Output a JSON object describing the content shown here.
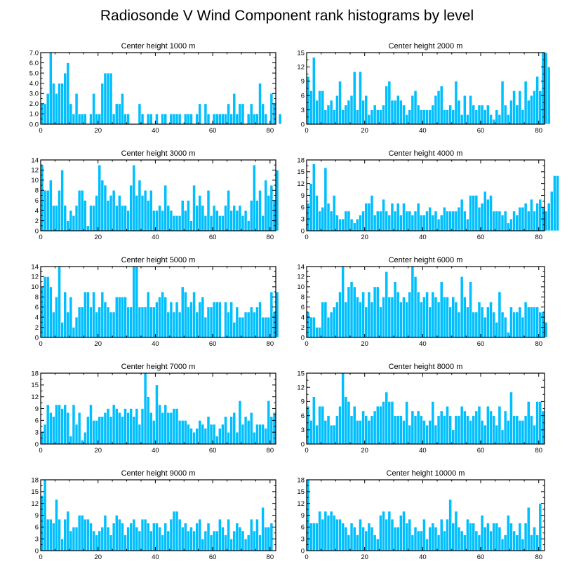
{
  "figure": {
    "title": "Radiosonde V Wind Component rank histograms by level"
  },
  "chart_data": [
    {
      "type": "bar",
      "title": "Center height 1000 m",
      "x_ticks": [
        0,
        20,
        40,
        60,
        80
      ],
      "xlim": [
        0,
        82
      ],
      "ylim": [
        0,
        7
      ],
      "y_ticks": [
        "0.0",
        "1.0",
        "2.0",
        "3.0",
        "4.0",
        "5.0",
        "6.0",
        "7.0"
      ],
      "values": [
        2,
        2,
        3,
        7,
        4,
        3,
        4,
        4,
        5,
        6,
        2,
        1,
        3,
        1,
        1,
        1,
        0,
        1,
        3,
        1,
        1,
        4,
        5,
        5,
        5,
        1,
        2,
        2,
        3,
        1,
        1,
        0,
        0,
        0,
        2,
        1,
        0,
        1,
        1,
        0,
        1,
        0,
        1,
        1,
        0,
        1,
        1,
        1,
        1,
        0,
        1,
        1,
        1,
        0,
        1,
        2,
        0,
        2,
        1,
        0,
        1,
        1,
        1,
        1,
        1,
        2,
        1,
        3,
        1,
        2,
        2,
        0,
        1,
        2,
        1,
        1,
        4,
        2,
        1,
        0,
        3,
        2,
        0,
        1,
        0
      ]
    },
    {
      "type": "bar",
      "title": "Center height 2000 m",
      "x_ticks": [
        0,
        20,
        40,
        60,
        80
      ],
      "xlim": [
        0,
        82
      ],
      "ylim": [
        0,
        15
      ],
      "y_ticks": [
        "0",
        "3",
        "6",
        "9",
        "12",
        "15"
      ],
      "values": [
        10,
        7,
        14,
        5,
        7,
        7,
        3,
        4,
        5,
        3,
        6,
        9,
        3,
        4,
        5,
        6,
        11,
        3,
        11,
        5,
        6,
        2,
        3,
        4,
        3,
        3,
        4,
        8,
        9,
        5,
        5,
        6,
        5,
        4,
        2,
        3,
        6,
        7,
        4,
        3,
        3,
        3,
        3,
        4,
        6,
        7,
        8,
        3,
        3,
        4,
        3,
        9,
        5,
        2,
        6,
        2,
        6,
        4,
        3,
        4,
        4,
        3,
        4,
        2,
        1,
        3,
        2,
        9,
        4,
        2,
        5,
        7,
        4,
        7,
        3,
        9,
        5,
        6,
        7,
        10,
        7,
        15,
        15,
        12
      ]
    },
    {
      "type": "bar",
      "title": "Center height 3000 m",
      "x_ticks": [
        0,
        20,
        40,
        60,
        80
      ],
      "xlim": [
        0,
        82
      ],
      "ylim": [
        0,
        14
      ],
      "y_ticks": [
        "0",
        "2",
        "4",
        "6",
        "8",
        "10",
        "12",
        "14"
      ],
      "values": [
        13,
        8,
        8,
        10,
        5,
        5,
        8,
        12,
        5,
        2,
        4,
        3,
        5,
        8,
        8,
        6,
        1,
        5,
        5,
        7,
        13,
        10,
        9,
        6,
        7,
        8,
        5,
        7,
        5,
        5,
        4,
        9,
        13,
        7,
        10,
        7,
        8,
        6,
        8,
        4,
        4,
        5,
        4,
        9,
        5,
        4,
        3,
        3,
        3,
        6,
        4,
        6,
        2,
        9,
        5,
        7,
        5,
        3,
        8,
        3,
        5,
        4,
        3,
        3,
        5,
        8,
        4,
        5,
        4,
        5,
        3,
        4,
        2,
        6,
        13,
        6,
        8,
        3,
        10,
        7,
        9,
        6,
        12
      ]
    },
    {
      "type": "bar",
      "title": "Center height 4000 m",
      "x_ticks": [
        0,
        20,
        40,
        60,
        80
      ],
      "xlim": [
        0,
        82
      ],
      "ylim": [
        0,
        18
      ],
      "y_ticks": [
        "0",
        "3",
        "6",
        "9",
        "12",
        "15",
        "18"
      ],
      "values": [
        7,
        12,
        17,
        9,
        5,
        6,
        16,
        7,
        5,
        9,
        4,
        3,
        3,
        5,
        5,
        3,
        2,
        3,
        4,
        5,
        7,
        7,
        9,
        4,
        5,
        5,
        8,
        5,
        4,
        7,
        5,
        7,
        4,
        7,
        5,
        5,
        4,
        5,
        7,
        4,
        4,
        5,
        6,
        4,
        5,
        3,
        4,
        6,
        5,
        5,
        5,
        5,
        6,
        8,
        5,
        3,
        9,
        9,
        9,
        6,
        7,
        10,
        8,
        9,
        5,
        5,
        5,
        4,
        5,
        2,
        3,
        5,
        4,
        6,
        6,
        7,
        5,
        8,
        5,
        7,
        8,
        6,
        5,
        7,
        10,
        14,
        14
      ]
    },
    {
      "type": "bar",
      "title": "Center height 5000 m",
      "x_ticks": [
        0,
        20,
        40,
        60,
        80
      ],
      "xlim": [
        0,
        82
      ],
      "ylim": [
        0,
        14
      ],
      "y_ticks": [
        "0",
        "2",
        "4",
        "6",
        "8",
        "10",
        "12",
        "14"
      ],
      "values": [
        10,
        12,
        12,
        10,
        5,
        8,
        14,
        3,
        9,
        5,
        8,
        2,
        4,
        6,
        6,
        9,
        9,
        6,
        9,
        5,
        6,
        9,
        7,
        6,
        5,
        5,
        8,
        8,
        8,
        8,
        6,
        6,
        14,
        14,
        6,
        6,
        6,
        9,
        6,
        6,
        7,
        8,
        9,
        8,
        5,
        7,
        5,
        7,
        5,
        10,
        9,
        6,
        7,
        9,
        5,
        7,
        8,
        4,
        6,
        6,
        7,
        7,
        7,
        0,
        7,
        5,
        7,
        3,
        6,
        4,
        4,
        5,
        5,
        6,
        5,
        6,
        7,
        4,
        4,
        4,
        9,
        5,
        9
      ]
    },
    {
      "type": "bar",
      "title": "Center height 6000 m",
      "x_ticks": [
        0,
        20,
        40,
        60,
        80
      ],
      "xlim": [
        0,
        82
      ],
      "ylim": [
        0,
        14
      ],
      "y_ticks": [
        "0",
        "2",
        "4",
        "6",
        "8",
        "10",
        "12",
        "14"
      ],
      "values": [
        5,
        4,
        4,
        2,
        2,
        7,
        7,
        4,
        5,
        6,
        7,
        9,
        14,
        7,
        10,
        11,
        10,
        8,
        7,
        9,
        6,
        9,
        7,
        10,
        10,
        6,
        8,
        13,
        8,
        8,
        11,
        9,
        7,
        8,
        7,
        9,
        14,
        12,
        9,
        7,
        8,
        9,
        6,
        9,
        8,
        7,
        11,
        8,
        8,
        6,
        8,
        7,
        5,
        12,
        8,
        6,
        11,
        5,
        5,
        7,
        6,
        4,
        6,
        7,
        5,
        3,
        9,
        5,
        4,
        1,
        6,
        5,
        5,
        6,
        4,
        7,
        6,
        6,
        6,
        6,
        5,
        5,
        3
      ]
    },
    {
      "type": "bar",
      "title": "Center height 7000 m",
      "x_ticks": [
        0,
        20,
        40,
        60,
        80
      ],
      "xlim": [
        0,
        82
      ],
      "ylim": [
        0,
        18
      ],
      "y_ticks": [
        "0",
        "3",
        "6",
        "9",
        "12",
        "15",
        "18"
      ],
      "values": [
        3,
        5,
        10,
        8,
        7,
        10,
        10,
        9,
        10,
        8,
        2,
        10,
        5,
        8,
        1,
        3,
        7,
        10,
        6,
        6,
        7,
        7,
        8,
        9,
        7,
        10,
        9,
        8,
        7,
        9,
        8,
        9,
        7,
        9,
        5,
        9,
        18,
        12,
        8,
        6,
        15,
        10,
        8,
        10,
        8,
        8,
        9,
        9,
        6,
        6,
        6,
        5,
        4,
        3,
        4,
        6,
        5,
        4,
        7,
        5,
        5,
        2,
        4,
        5,
        7,
        3,
        7,
        8,
        3,
        11,
        5,
        7,
        6,
        8,
        3,
        5,
        5,
        5,
        4,
        11,
        7,
        8
      ]
    },
    {
      "type": "bar",
      "title": "Center height 8000 m",
      "x_ticks": [
        0,
        20,
        40,
        60,
        80
      ],
      "xlim": [
        0,
        82
      ],
      "ylim": [
        0,
        15
      ],
      "y_ticks": [
        "0",
        "3",
        "6",
        "9",
        "12",
        "15"
      ],
      "values": [
        8,
        5,
        10,
        4,
        8,
        8,
        5,
        6,
        4,
        4,
        6,
        8,
        15,
        10,
        9,
        6,
        8,
        5,
        5,
        7,
        6,
        5,
        6,
        7,
        8,
        8,
        9,
        11,
        9,
        9,
        6,
        6,
        6,
        5,
        9,
        4,
        7,
        6,
        7,
        6,
        5,
        4,
        5,
        9,
        4,
        6,
        7,
        6,
        8,
        6,
        3,
        6,
        6,
        8,
        7,
        6,
        5,
        6,
        7,
        8,
        5,
        4,
        8,
        7,
        6,
        4,
        8,
        3,
        7,
        5,
        11,
        6,
        6,
        5,
        5,
        6,
        9,
        6,
        4,
        9,
        9,
        7
      ]
    },
    {
      "type": "bar",
      "title": "Center height 9000 m",
      "x_ticks": [
        0,
        20,
        40,
        60,
        80
      ],
      "xlim": [
        0,
        82
      ],
      "ylim": [
        0,
        18
      ],
      "y_ticks": [
        "0",
        "3",
        "6",
        "9",
        "12",
        "15",
        "18"
      ],
      "values": [
        14,
        18,
        8,
        8,
        7,
        13,
        8,
        3,
        8,
        10,
        5,
        6,
        6,
        9,
        9,
        8,
        8,
        7,
        5,
        4,
        5,
        6,
        9,
        6,
        4,
        7,
        9,
        8,
        7,
        4,
        6,
        7,
        8,
        6,
        5,
        8,
        8,
        7,
        5,
        7,
        7,
        6,
        4,
        7,
        5,
        8,
        10,
        10,
        8,
        6,
        7,
        5,
        6,
        5,
        7,
        8,
        3,
        5,
        7,
        4,
        5,
        5,
        8,
        6,
        4,
        8,
        3,
        5,
        7,
        6,
        5,
        3,
        4,
        8,
        5,
        8,
        4,
        11,
        6,
        6,
        7
      ]
    },
    {
      "type": "bar",
      "title": "Center height 10000 m",
      "x_ticks": [
        0,
        20,
        40,
        60,
        80
      ],
      "xlim": [
        0,
        82
      ],
      "ylim": [
        0,
        18
      ],
      "y_ticks": [
        "0",
        "3",
        "6",
        "9",
        "12",
        "15",
        "18"
      ],
      "values": [
        18,
        7,
        7,
        7,
        10,
        8,
        10,
        9,
        10,
        9,
        8,
        8,
        7,
        6,
        4,
        7,
        6,
        4,
        8,
        6,
        5,
        7,
        6,
        4,
        3,
        9,
        10,
        8,
        10,
        8,
        6,
        6,
        9,
        10,
        7,
        8,
        4,
        6,
        5,
        5,
        8,
        3,
        6,
        7,
        6,
        4,
        8,
        5,
        8,
        13,
        7,
        10,
        6,
        5,
        4,
        8,
        7,
        7,
        5,
        4,
        9,
        6,
        7,
        5,
        7,
        7,
        6,
        3,
        4,
        9,
        7,
        5,
        4,
        7,
        3,
        7,
        11,
        4,
        6,
        4,
        12
      ]
    }
  ]
}
